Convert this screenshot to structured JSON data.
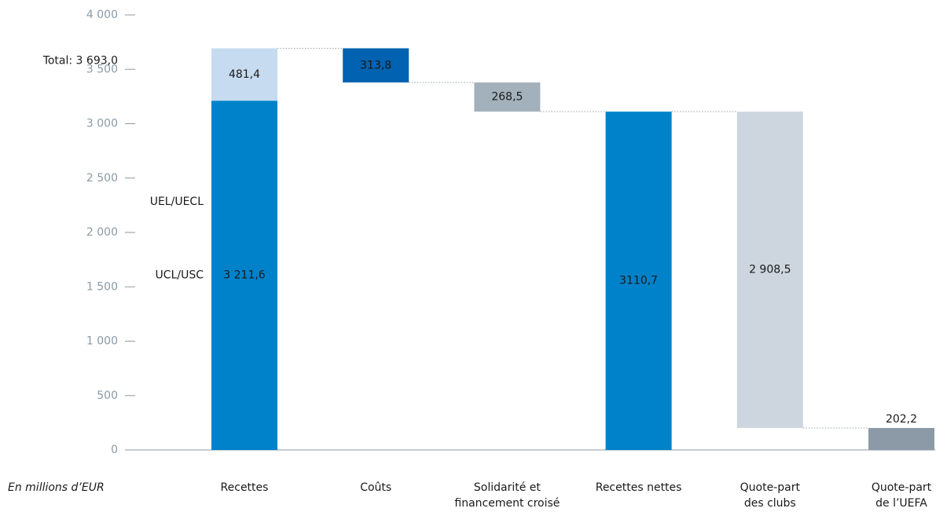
{
  "chart_data": {
    "type": "waterfall",
    "x_label": "En millions d’EUR",
    "categories": [
      [
        "Recettes"
      ],
      [
        "Coûts"
      ],
      [
        "Solidarité et",
        "financement croisé"
      ],
      [
        "Recettes nettes"
      ],
      [
        "Quote-part",
        "des clubs"
      ],
      [
        "Quote-part",
        "de l’UEFA"
      ]
    ],
    "measures": [
      "total",
      "decrease",
      "decrease",
      "total",
      "decrease",
      "total"
    ],
    "values": [
      3211.6,
      313.8,
      268.5,
      3110.7,
      2908.5,
      202.2
    ],
    "value_labels": [
      "3 211,6",
      "313,8",
      "268,5",
      "3110,7",
      "2 908,5",
      "202,2"
    ],
    "colors": [
      "#0082ca",
      "#0062b0",
      "#a3b1bc",
      "#0082ca",
      "#cdd6de",
      "#8b9aa6"
    ],
    "label_colors": [
      "#ffffff",
      "#ffffff",
      "#ffffff",
      "#ffffff",
      "#1a1a1a",
      "#1a1a1a"
    ],
    "segment_names": [
      "UCL/USC",
      null,
      null,
      null,
      null,
      null
    ],
    "top_segments": [
      {
        "name": "UEL/UECL",
        "value": 481.4,
        "value_label": "481,4",
        "color": "#c6dbf0",
        "label_color": "#1a1a1a"
      },
      null,
      null,
      null,
      null,
      null
    ],
    "total": {
      "label": "Total: 3 693,0",
      "value": 3693
    },
    "ylim": [
      0,
      4000
    ],
    "yticks": [
      0,
      500,
      {
        "value": 1000,
        "label": "1 000"
      },
      {
        "value": 1500,
        "label": "1 500"
      },
      {
        "value": 2000,
        "label": "2 000"
      },
      {
        "value": 2500,
        "label": "2 500"
      },
      {
        "value": 3000,
        "label": "3 000"
      },
      {
        "value": 3500,
        "label": "3 500"
      },
      {
        "value": 4000,
        "label": "4 000"
      }
    ]
  }
}
